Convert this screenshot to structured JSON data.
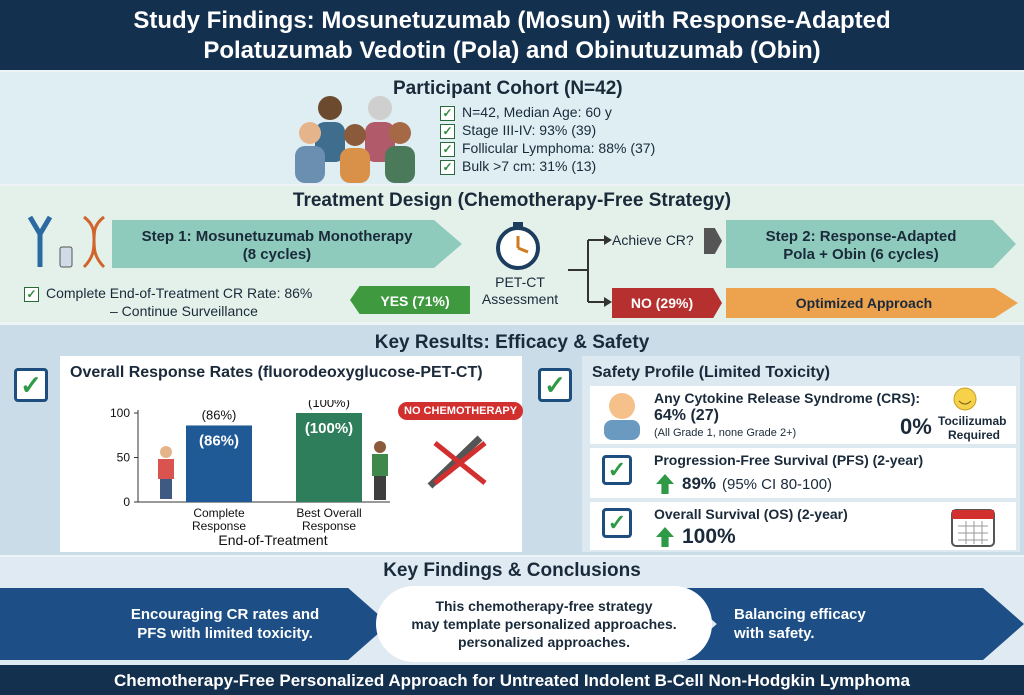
{
  "header": {
    "title": [
      "Study Findings: Mosunetuzumab (Mosun) with Response-Adapted",
      "Polatuzumab Vedotin (Pola) and Obinutuzumab (Obin)"
    ]
  },
  "cohort": {
    "title": "Participant Cohort (N=42)",
    "items": [
      "N=42, Median Age: 60 y",
      "Stage III-IV: 93% (39)",
      "Follicular Lymphoma: 88% (37)",
      "Bulk >7 cm: 31% (13)"
    ]
  },
  "treatment": {
    "title": "Treatment Design (Chemotherapy-Free Strategy)",
    "step1": [
      "Step 1: Mosunetuzumab Monotherapy",
      "(8 cycles)"
    ],
    "assessment": [
      "PET-CT",
      "Assessment"
    ],
    "question": "Achieve CR?",
    "step2": [
      "Step 2: Response-Adapted",
      "Pola + Obin (6 cycles)"
    ],
    "yes": "YES (71%)",
    "no": "NO (29%)",
    "optimized": "Optimized Approach",
    "outcome": [
      "Complete End-of-Treatment CR Rate: 86%",
      "– Continue Surveillance"
    ]
  },
  "results": {
    "title": "Key Results: Efficacy & Safety",
    "efficacy_title": "Overall Response Rates (fluorodeoxyglucose-PET-CT)",
    "badge": "NO CHEMOTHERAPY",
    "safety_title": "Safety Profile (Limited Toxicity)",
    "crs": {
      "label": "Any Cytokine Release Syndrome (CRS):",
      "value": "64% (27)",
      "note": "(All Grade 1, none Grade 2+)",
      "toci_value": "0%",
      "toci_label": [
        "Tocilizumab",
        "Required"
      ]
    },
    "pfs": {
      "label": "Progression-Free Survival (PFS) (2-year)",
      "value": "89%",
      "ci": "(95% CI 80-100)"
    },
    "os": {
      "label": "Overall Survival (OS) (2-year)",
      "value": "100%"
    }
  },
  "chart_data": {
    "type": "bar",
    "categories": [
      [
        "Complete",
        "Response"
      ],
      [
        "Best Overall",
        "Response"
      ]
    ],
    "values": [
      86,
      100
    ],
    "value_labels": [
      "(86%)",
      "(100%)"
    ],
    "color": "#1f5a96",
    "colors": [
      "#1f5a96",
      "#2e7d5b"
    ],
    "ylim": [
      0,
      100
    ],
    "yticks": [
      0,
      50,
      100
    ],
    "xlabel": "End-of-Treatment"
  },
  "conclusions": {
    "title": "Key Findings & Conclusions",
    "left": [
      "Encouraging CR rates and",
      "PFS with limited toxicity."
    ],
    "center": [
      "This chemotherapy-free strategy",
      "may template personalized approaches.",
      "personalized approaches."
    ],
    "right": [
      "Balancing efficacy",
      "with safety."
    ]
  },
  "footer": {
    "text": "Chemotherapy-Free Personalized Approach for Untreated Indolent B-Cell Non-Hodgkin Lymphoma"
  }
}
